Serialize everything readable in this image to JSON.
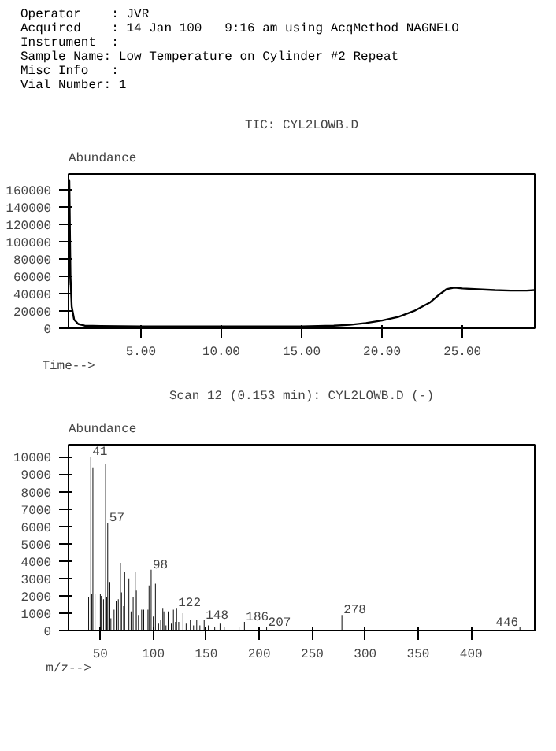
{
  "chart_data": [
    {
      "type": "line",
      "title": "TIC: CYL2LOWB.D",
      "ylabel": "Abundance",
      "xlabel": "Time-->",
      "annotations": [
        "Operator    : JVR",
        "Acquired    : 14 Jan 100   9:16 am using AcqMethod NAGNELO",
        "Instrument  :",
        "Sample Name: Low Temperature on Cylinder #2 Repeat",
        "Misc Info   :",
        "Vial Number: 1"
      ],
      "x": [
        0.5,
        0.55,
        0.62,
        0.7,
        0.85,
        1.1,
        1.5,
        2.5,
        5,
        10,
        15,
        17,
        18,
        19,
        20,
        21,
        22,
        23,
        23.5,
        24,
        24.5,
        25,
        26,
        27,
        28,
        29,
        29.5
      ],
      "series": [
        {
          "color": "#000000",
          "values": [
            50000,
            170000,
            60000,
            25000,
            10000,
            5000,
            3000,
            2500,
            2000,
            2000,
            2200,
            3000,
            4000,
            6000,
            9000,
            13000,
            20000,
            30000,
            38000,
            45000,
            47000,
            46000,
            45000,
            44000,
            43500,
            43500,
            44000
          ]
        }
      ],
      "xlim": [
        0.5,
        29.5
      ],
      "ylim": [
        0,
        178000
      ],
      "xticks": [
        {
          "value": 5,
          "label": "5.00"
        },
        {
          "value": 10,
          "label": "10.00"
        },
        {
          "value": 15,
          "label": "15.00"
        },
        {
          "value": 20,
          "label": "20.00"
        },
        {
          "value": 25,
          "label": "25.00"
        }
      ],
      "yticks": [
        0,
        20000,
        40000,
        60000,
        80000,
        100000,
        120000,
        140000,
        160000
      ],
      "grid": false,
      "line_style": "solid",
      "marker": "none"
    },
    {
      "type": "bar",
      "title": "Scan 12 (0.153 min): CYL2LOWB.D (-)",
      "ylabel": "Abundance",
      "xlabel": "m/z-->",
      "x": [
        39,
        41,
        42,
        43,
        45,
        50,
        51,
        53,
        55,
        56,
        57,
        59,
        60,
        63,
        65,
        67,
        69,
        70,
        72,
        73,
        75,
        77,
        79,
        81,
        83,
        84,
        86,
        89,
        91,
        95,
        96,
        97,
        98,
        100,
        102,
        105,
        107,
        109,
        110,
        112,
        114,
        117,
        119,
        121,
        122,
        124,
        128,
        131,
        135,
        138,
        141,
        144,
        148,
        152,
        158,
        163,
        167,
        170,
        175,
        181,
        186,
        190,
        200,
        207,
        278,
        446
      ],
      "series": [
        {
          "color": "#000000",
          "values": [
            1900,
            10000,
            2100,
            9400,
            2100,
            2100,
            2000,
            1800,
            9600,
            1900,
            6200,
            2800,
            700,
            1200,
            1700,
            1800,
            3900,
            2200,
            1400,
            3400,
            null,
            3000,
            1100,
            1900,
            3400,
            2300,
            900,
            1200,
            1200,
            1200,
            2600,
            1200,
            3500,
            800,
            2700,
            400,
            600,
            1300,
            1100,
            300,
            1100,
            400,
            1200,
            500,
            1300,
            500,
            1000,
            400,
            600,
            300,
            600,
            300,
            600,
            300,
            200,
            400,
            200,
            null,
            null,
            200,
            500,
            null,
            100,
            200,
            900,
            200
          ]
        }
      ],
      "annotations": [
        {
          "text": "41",
          "x": 41,
          "y": 10000
        },
        {
          "text": "57",
          "x": 57,
          "y": 6200
        },
        {
          "text": "98",
          "x": 98,
          "y": 3500
        },
        {
          "text": "122",
          "x": 122,
          "y": 1300
        },
        {
          "text": "148",
          "x": 148,
          "y": 600
        },
        {
          "text": "186",
          "x": 186,
          "y": 500
        },
        {
          "text": "207",
          "x": 207,
          "y": 200
        },
        {
          "text": "278",
          "x": 278,
          "y": 900
        },
        {
          "text": "446",
          "x": 446,
          "y": 200
        }
      ],
      "xlim": [
        20,
        460
      ],
      "ylim": [
        0,
        10700
      ],
      "xticks": [
        50,
        100,
        150,
        200,
        250,
        300,
        350,
        400
      ],
      "yticks": [
        0,
        1000,
        2000,
        3000,
        4000,
        5000,
        6000,
        7000,
        8000,
        9000,
        10000
      ],
      "grid": false
    }
  ]
}
